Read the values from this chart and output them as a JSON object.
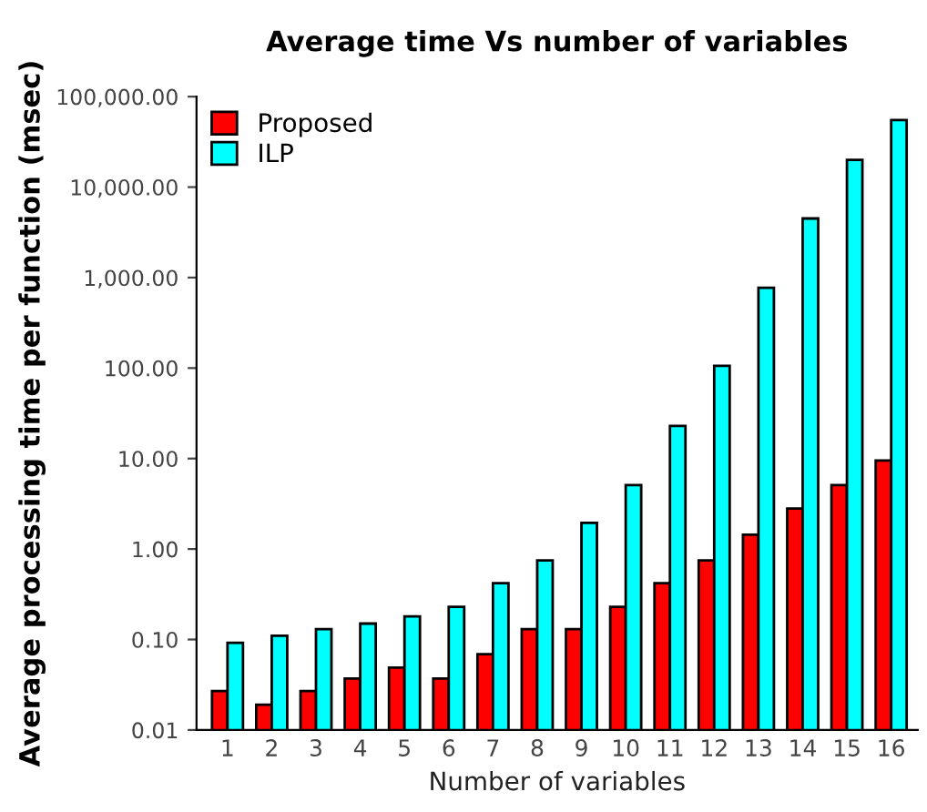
{
  "chart_data": {
    "type": "bar",
    "title": "Average time Vs number of variables",
    "xlabel": "Number of variables",
    "ylabel": "Average processing time per function (msec)",
    "categories": [
      "1",
      "2",
      "3",
      "4",
      "5",
      "6",
      "7",
      "8",
      "9",
      "10",
      "11",
      "12",
      "13",
      "14",
      "15",
      "16"
    ],
    "series": [
      {
        "name": "Proposed",
        "color": "#ff0000",
        "values": [
          0.027,
          0.019,
          0.027,
          0.037,
          0.049,
          0.037,
          0.069,
          0.13,
          0.13,
          0.23,
          0.42,
          0.75,
          1.44,
          2.8,
          5.1,
          9.5
        ]
      },
      {
        "name": "ILP",
        "color": "#00ffff",
        "values": [
          0.092,
          0.11,
          0.13,
          0.15,
          0.18,
          0.23,
          0.42,
          0.75,
          1.95,
          5.1,
          23,
          106,
          770,
          4500,
          20000,
          55000
        ]
      }
    ],
    "log": "y",
    "ylim": [
      0.01,
      100000
    ],
    "yticks": [
      {
        "value": 0.01,
        "label": "0.01"
      },
      {
        "value": 0.1,
        "label": "0.10"
      },
      {
        "value": 1,
        "label": "1.00"
      },
      {
        "value": 10,
        "label": "10.00"
      },
      {
        "value": 100,
        "label": "100.00"
      },
      {
        "value": 1000,
        "label": "1,000.00"
      },
      {
        "value": 10000,
        "label": "10,000.00"
      },
      {
        "value": 100000,
        "label": "100,000.00"
      }
    ],
    "legend": "top left",
    "grid": false
  }
}
